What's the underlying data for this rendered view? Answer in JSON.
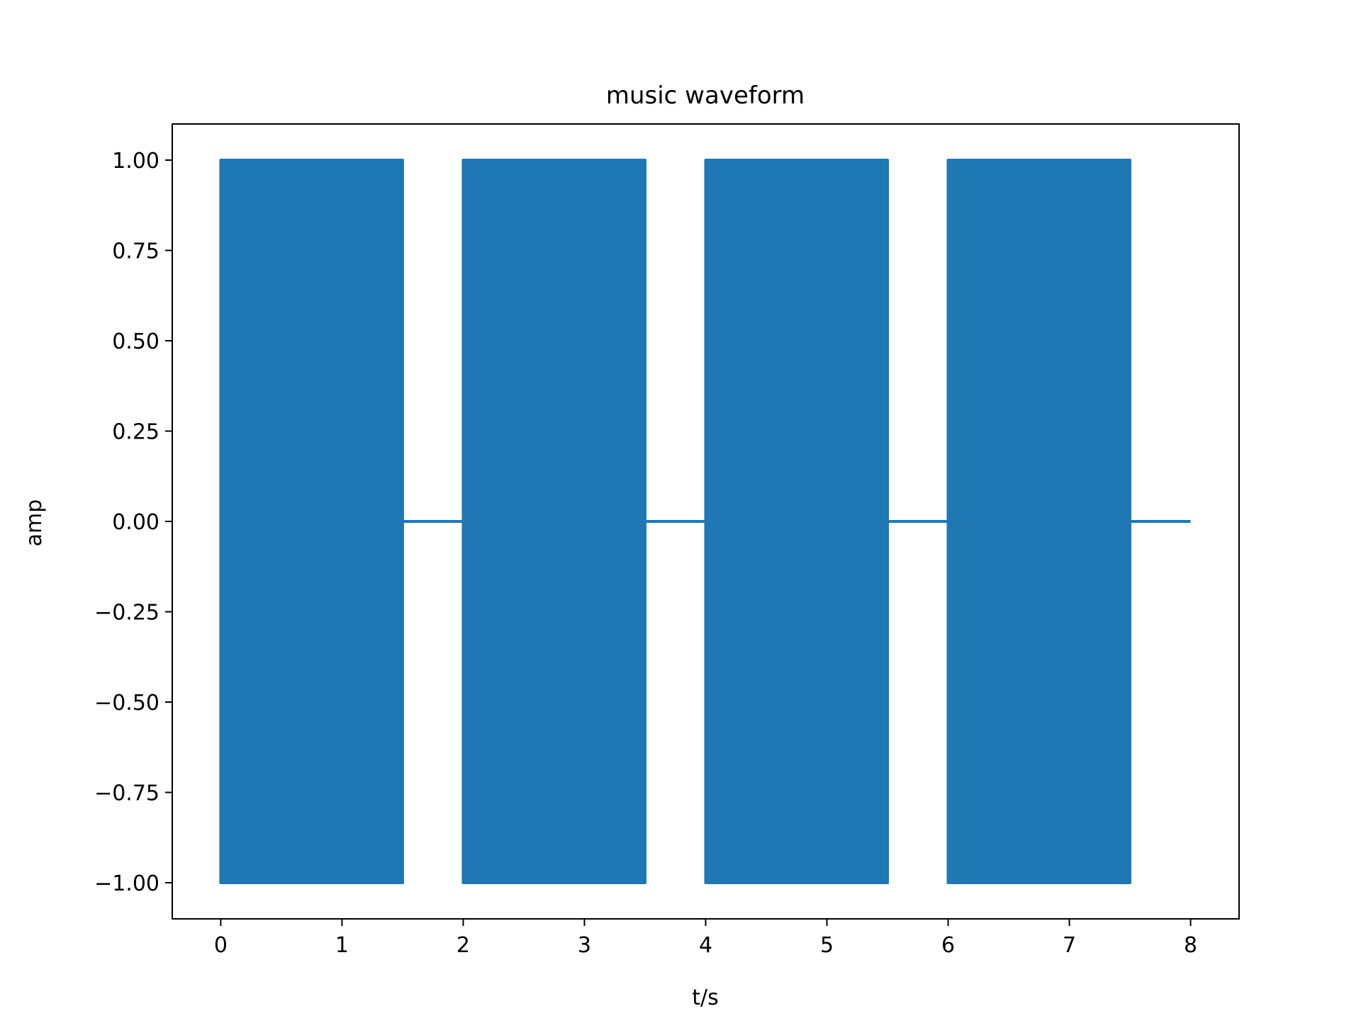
{
  "chart_data": {
    "type": "area",
    "title": "music waveform",
    "xlabel": "t/s",
    "ylabel": "amp",
    "xlim": [
      -0.4,
      8.4
    ],
    "ylim": [
      -1.1,
      1.1
    ],
    "x_ticks": [
      0,
      1,
      2,
      3,
      4,
      5,
      6,
      7,
      8
    ],
    "x_tick_labels": [
      "0",
      "1",
      "2",
      "3",
      "4",
      "5",
      "6",
      "7",
      "8"
    ],
    "y_ticks": [
      1.0,
      0.75,
      0.5,
      0.25,
      0.0,
      -0.25,
      -0.5,
      -0.75,
      -1.0
    ],
    "y_tick_labels": [
      "1.00",
      "0.75",
      "0.50",
      "0.25",
      "0.00",
      "−0.25",
      "−0.50",
      "−0.75",
      "−1.00"
    ],
    "grid": false,
    "legend": "none",
    "series": [
      {
        "color": "#1f77b4",
        "bursts": [
          {
            "start": 0.0,
            "end": 1.5,
            "amplitude": 1.0
          },
          {
            "start": 2.0,
            "end": 3.5,
            "amplitude": 1.0
          },
          {
            "start": 4.0,
            "end": 5.5,
            "amplitude": 1.0
          },
          {
            "start": 6.0,
            "end": 7.5,
            "amplitude": 1.0
          }
        ],
        "silence_value": 0.0,
        "t_end": 8.0
      }
    ]
  }
}
